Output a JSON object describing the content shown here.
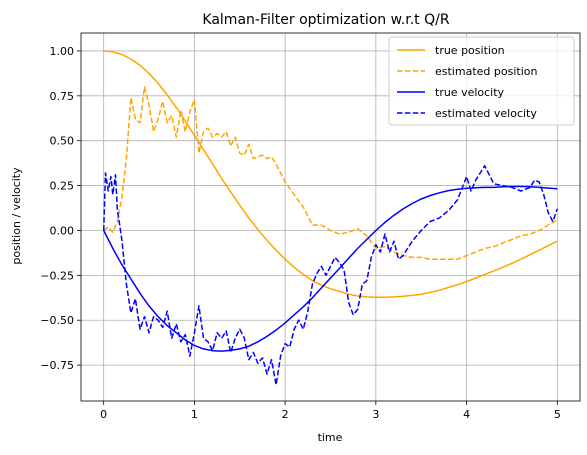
{
  "chart_data": {
    "type": "line",
    "title": "Kalman-Filter optimization w.r.t Q/R",
    "xlabel": "time",
    "ylabel": "position / velocity",
    "xlim": [
      -0.25,
      5.25
    ],
    "ylim": [
      -0.95,
      1.1
    ],
    "xticks": [
      0,
      1,
      2,
      3,
      4,
      5
    ],
    "xtick_labels": [
      "0",
      "1",
      "2",
      "3",
      "4",
      "5"
    ],
    "yticks": [
      -0.75,
      -0.5,
      -0.25,
      0.0,
      0.25,
      0.5,
      0.75,
      1.0
    ],
    "ytick_labels": [
      "−0.75",
      "−0.50",
      "−0.25",
      "0.00",
      "0.25",
      "0.50",
      "0.75",
      "1.00"
    ],
    "grid": true,
    "legend_position": "top-right",
    "series": [
      {
        "name": "true position",
        "color": "#ffa500",
        "style": "solid",
        "x": [
          0,
          0.1,
          0.2,
          0.3,
          0.4,
          0.5,
          0.6,
          0.7,
          0.8,
          0.9,
          1.0,
          1.1,
          1.2,
          1.3,
          1.4,
          1.5,
          1.6,
          1.7,
          1.8,
          1.9,
          2.0,
          2.1,
          2.2,
          2.3,
          2.4,
          2.5,
          2.6,
          2.7,
          2.8,
          2.9,
          3.0,
          3.1,
          3.2,
          3.3,
          3.4,
          3.5,
          3.6,
          3.7,
          3.8,
          3.9,
          4.0,
          4.1,
          4.2,
          4.3,
          4.4,
          4.5,
          4.6,
          4.7,
          4.8,
          4.9,
          5.0
        ],
        "y": [
          1.0,
          0.995,
          0.98,
          0.955,
          0.92,
          0.875,
          0.82,
          0.755,
          0.685,
          0.61,
          0.53,
          0.45,
          0.37,
          0.29,
          0.215,
          0.14,
          0.07,
          0.005,
          -0.055,
          -0.11,
          -0.16,
          -0.205,
          -0.245,
          -0.28,
          -0.305,
          -0.325,
          -0.34,
          -0.355,
          -0.365,
          -0.37,
          -0.372,
          -0.372,
          -0.37,
          -0.367,
          -0.362,
          -0.355,
          -0.345,
          -0.333,
          -0.318,
          -0.302,
          -0.285,
          -0.265,
          -0.245,
          -0.225,
          -0.205,
          -0.183,
          -0.16,
          -0.135,
          -0.11,
          -0.085,
          -0.06
        ]
      },
      {
        "name": "estimated position",
        "color": "#ffa500",
        "style": "dashed",
        "x": [
          0,
          0.05,
          0.1,
          0.15,
          0.2,
          0.25,
          0.3,
          0.35,
          0.4,
          0.45,
          0.5,
          0.55,
          0.6,
          0.65,
          0.7,
          0.75,
          0.8,
          0.85,
          0.9,
          0.95,
          1.0,
          1.05,
          1.1,
          1.15,
          1.2,
          1.25,
          1.3,
          1.35,
          1.4,
          1.45,
          1.5,
          1.55,
          1.6,
          1.65,
          1.7,
          1.75,
          1.8,
          1.85,
          1.9,
          1.95,
          2.0,
          2.1,
          2.2,
          2.3,
          2.4,
          2.5,
          2.6,
          2.7,
          2.8,
          2.9,
          3.0,
          3.1,
          3.2,
          3.3,
          3.4,
          3.5,
          3.6,
          3.7,
          3.8,
          3.9,
          4.0,
          4.1,
          4.2,
          4.3,
          4.4,
          4.5,
          4.6,
          4.7,
          4.8,
          4.9,
          5.0
        ],
        "y": [
          0.0,
          0.02,
          -0.01,
          0.05,
          0.18,
          0.4,
          0.74,
          0.62,
          0.6,
          0.8,
          0.7,
          0.55,
          0.62,
          0.72,
          0.6,
          0.64,
          0.52,
          0.67,
          0.55,
          0.66,
          0.73,
          0.43,
          0.55,
          0.57,
          0.52,
          0.54,
          0.52,
          0.55,
          0.47,
          0.52,
          0.43,
          0.42,
          0.48,
          0.4,
          0.41,
          0.42,
          0.4,
          0.41,
          0.37,
          0.32,
          0.27,
          0.2,
          0.13,
          0.03,
          0.03,
          0.0,
          -0.02,
          -0.01,
          0.01,
          -0.03,
          -0.1,
          -0.09,
          -0.12,
          -0.14,
          -0.15,
          -0.15,
          -0.16,
          -0.16,
          -0.16,
          -0.16,
          -0.14,
          -0.12,
          -0.1,
          -0.09,
          -0.07,
          -0.05,
          -0.03,
          -0.02,
          0.0,
          0.03,
          0.06
        ]
      },
      {
        "name": "true velocity",
        "color": "#0000ff",
        "style": "solid",
        "x": [
          0,
          0.1,
          0.2,
          0.3,
          0.4,
          0.5,
          0.6,
          0.7,
          0.8,
          0.9,
          1.0,
          1.1,
          1.2,
          1.3,
          1.4,
          1.5,
          1.6,
          1.7,
          1.8,
          1.9,
          2.0,
          2.1,
          2.2,
          2.3,
          2.4,
          2.5,
          2.6,
          2.7,
          2.8,
          2.9,
          3.0,
          3.1,
          3.2,
          3.3,
          3.4,
          3.5,
          3.6,
          3.7,
          3.8,
          3.9,
          4.0,
          4.1,
          4.2,
          4.3,
          4.4,
          4.5,
          4.6,
          4.7,
          4.8,
          4.9,
          5.0
        ],
        "y": [
          0.0,
          -0.1,
          -0.19,
          -0.27,
          -0.35,
          -0.42,
          -0.48,
          -0.53,
          -0.57,
          -0.61,
          -0.64,
          -0.66,
          -0.67,
          -0.672,
          -0.668,
          -0.66,
          -0.645,
          -0.62,
          -0.59,
          -0.555,
          -0.515,
          -0.47,
          -0.425,
          -0.375,
          -0.32,
          -0.265,
          -0.21,
          -0.155,
          -0.1,
          -0.05,
          0.0,
          0.045,
          0.085,
          0.12,
          0.15,
          0.175,
          0.195,
          0.21,
          0.222,
          0.23,
          0.235,
          0.238,
          0.24,
          0.24,
          0.243,
          0.245,
          0.245,
          0.243,
          0.24,
          0.236,
          0.232
        ]
      },
      {
        "name": "estimated velocity",
        "color": "#0000ff",
        "style": "dashed",
        "x": [
          0,
          0.02,
          0.05,
          0.08,
          0.1,
          0.13,
          0.15,
          0.2,
          0.25,
          0.3,
          0.35,
          0.4,
          0.45,
          0.5,
          0.55,
          0.6,
          0.65,
          0.7,
          0.75,
          0.8,
          0.85,
          0.9,
          0.95,
          1.0,
          1.05,
          1.1,
          1.15,
          1.2,
          1.25,
          1.3,
          1.35,
          1.4,
          1.45,
          1.5,
          1.55,
          1.6,
          1.65,
          1.7,
          1.75,
          1.8,
          1.85,
          1.9,
          1.95,
          2.0,
          2.05,
          2.1,
          2.15,
          2.2,
          2.25,
          2.3,
          2.35,
          2.4,
          2.45,
          2.5,
          2.55,
          2.6,
          2.65,
          2.7,
          2.75,
          2.8,
          2.85,
          2.9,
          2.95,
          3.0,
          3.05,
          3.1,
          3.15,
          3.2,
          3.25,
          3.3,
          3.4,
          3.5,
          3.6,
          3.7,
          3.8,
          3.9,
          4.0,
          4.05,
          4.1,
          4.15,
          4.2,
          4.3,
          4.4,
          4.5,
          4.6,
          4.7,
          4.75,
          4.8,
          4.85,
          4.9,
          4.95,
          5.0
        ],
        "y": [
          0.0,
          0.32,
          0.22,
          0.3,
          0.2,
          0.31,
          0.12,
          -0.05,
          -0.3,
          -0.46,
          -0.38,
          -0.55,
          -0.48,
          -0.57,
          -0.48,
          -0.5,
          -0.54,
          -0.45,
          -0.6,
          -0.52,
          -0.62,
          -0.58,
          -0.7,
          -0.57,
          -0.42,
          -0.6,
          -0.62,
          -0.67,
          -0.57,
          -0.6,
          -0.56,
          -0.68,
          -0.6,
          -0.55,
          -0.6,
          -0.72,
          -0.68,
          -0.74,
          -0.71,
          -0.8,
          -0.72,
          -0.86,
          -0.7,
          -0.63,
          -0.65,
          -0.55,
          -0.5,
          -0.55,
          -0.45,
          -0.3,
          -0.24,
          -0.2,
          -0.25,
          -0.2,
          -0.15,
          -0.18,
          -0.22,
          -0.4,
          -0.47,
          -0.44,
          -0.3,
          -0.28,
          -0.15,
          -0.08,
          -0.12,
          -0.02,
          -0.12,
          -0.06,
          -0.16,
          -0.14,
          -0.06,
          0.0,
          0.05,
          0.07,
          0.11,
          0.17,
          0.3,
          0.22,
          0.28,
          0.32,
          0.36,
          0.26,
          0.25,
          0.24,
          0.22,
          0.24,
          0.28,
          0.27,
          0.2,
          0.1,
          0.05,
          0.12
        ]
      }
    ]
  }
}
